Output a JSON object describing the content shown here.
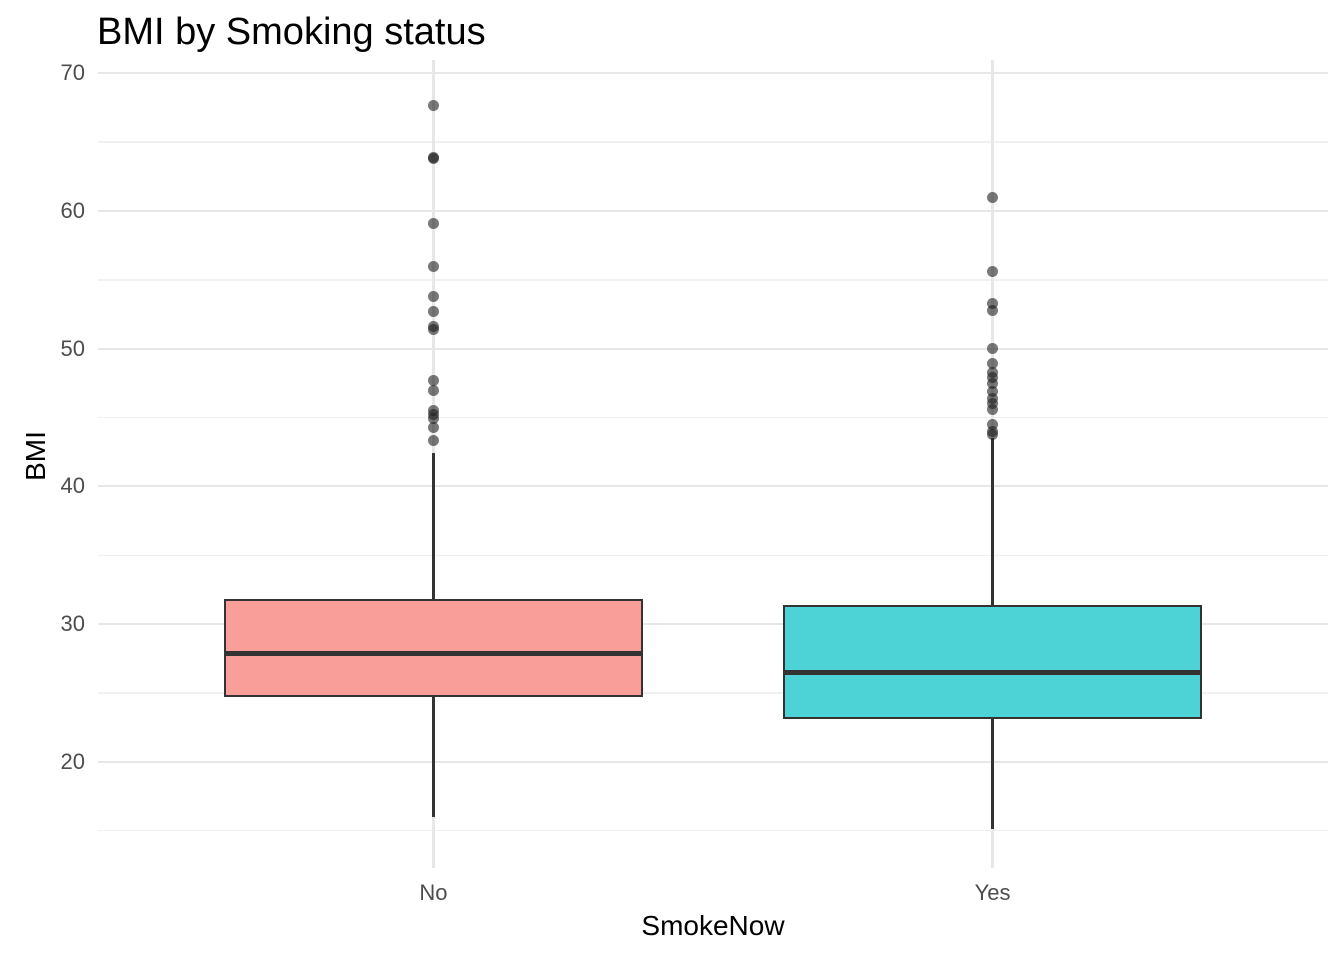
{
  "chart_data": {
    "type": "boxplot",
    "title": "BMI by Smoking status",
    "xlabel": "SmokeNow",
    "ylabel": "BMI",
    "categories": [
      "No",
      "Yes"
    ],
    "y_ticks": [
      20,
      30,
      40,
      50,
      60,
      70
    ],
    "y_minor_ticks": [
      15,
      25,
      35,
      45,
      55,
      65
    ],
    "ylim": [
      13.45,
      70.97
    ],
    "grid": "major and minor horizontal gridlines plus vertical gridline per category, light gray on white",
    "legend": "none",
    "series": [
      {
        "name": "No",
        "q1": 24.7,
        "median": 27.9,
        "q3": 31.8,
        "whisker_low": 16.0,
        "whisker_high": 42.4,
        "outliers": [
          43.3,
          44.3,
          44.9,
          45.2,
          45.5,
          47.0,
          47.7,
          51.4,
          51.6,
          52.7,
          53.8,
          56.0,
          59.1,
          63.8,
          63.9,
          67.7
        ],
        "fill": "#FA9E9A"
      },
      {
        "name": "Yes",
        "q1": 23.1,
        "median": 26.5,
        "q3": 31.4,
        "whisker_low": 15.1,
        "whisker_high": 43.5,
        "outliers": [
          43.8,
          44.0,
          44.5,
          45.6,
          46.0,
          46.4,
          46.9,
          47.5,
          47.9,
          48.3,
          48.9,
          50.0,
          52.8,
          53.3,
          55.6,
          61.0
        ],
        "fill": "#4DD3D6"
      }
    ],
    "colors": {
      "box_border": "#333333",
      "median_line": "#333333",
      "outlier_point": "#1E1E1E",
      "outlier_point_opacity": 0.6,
      "grid_major": "#E7E7E7",
      "grid_minor": "#F0F0F0",
      "tick_label": "#4D4D4D",
      "text": "#000000",
      "background": "#FFFFFF"
    }
  }
}
